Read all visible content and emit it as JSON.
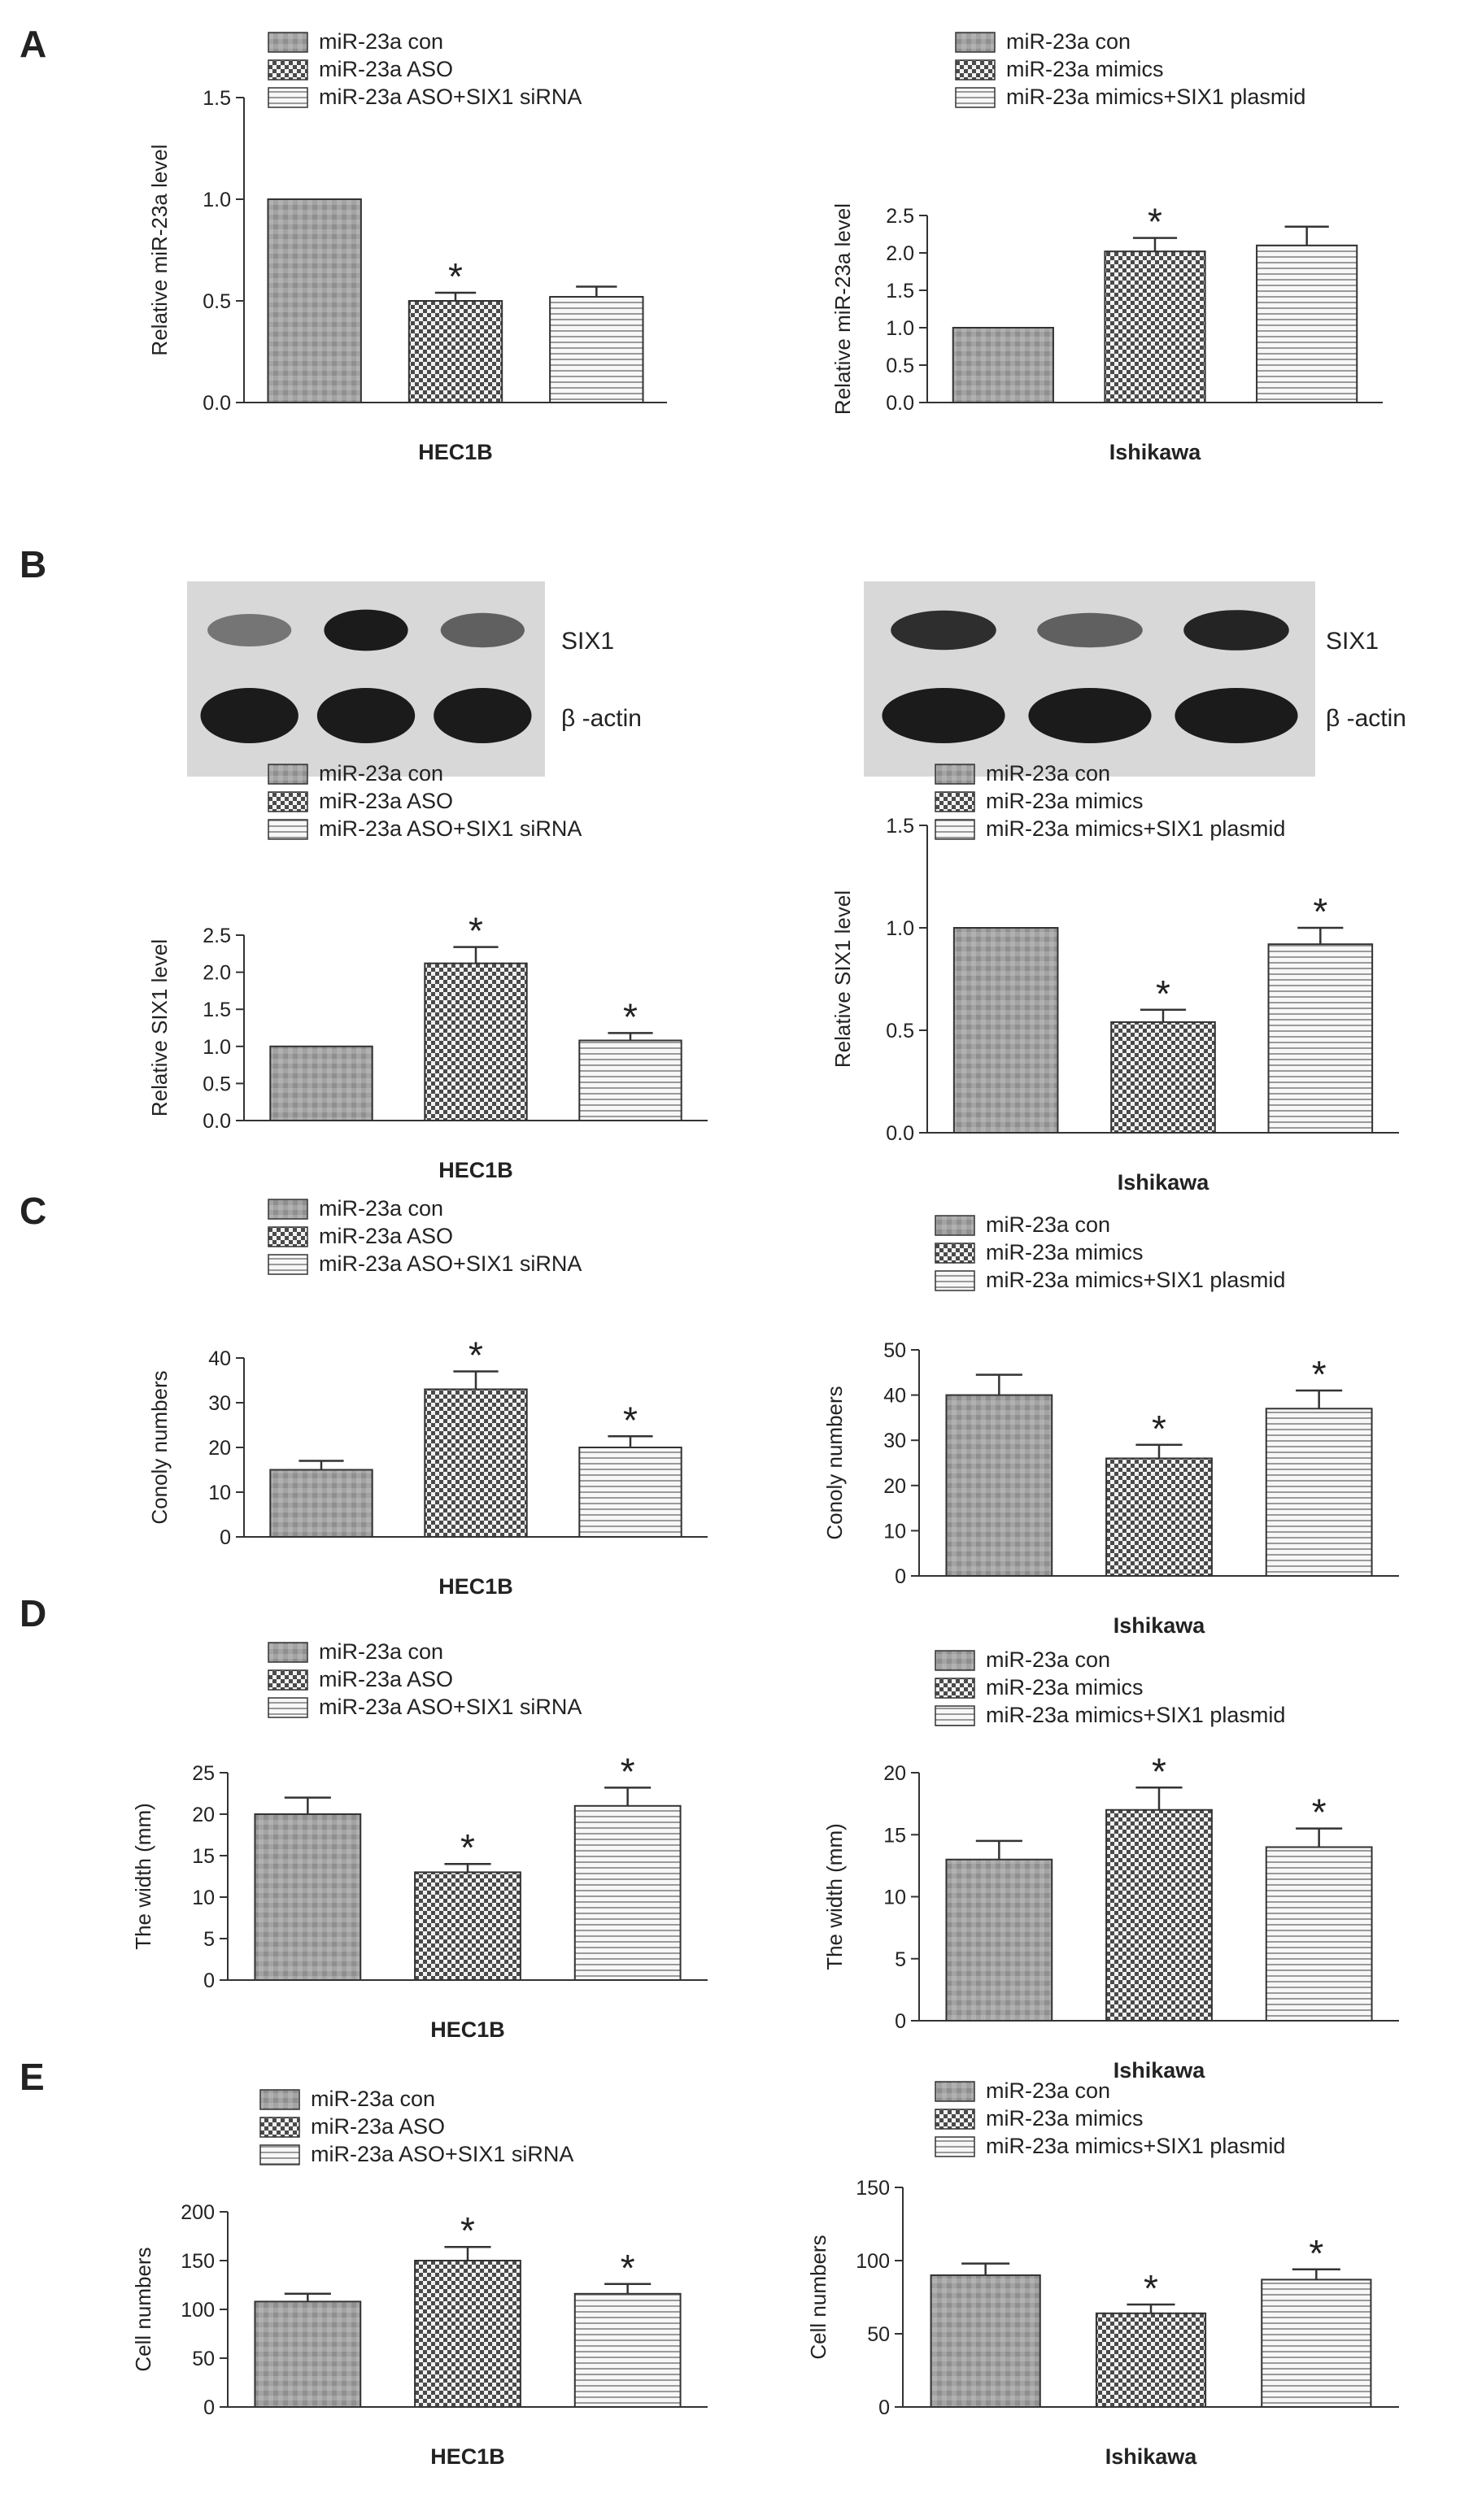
{
  "panels": [
    {
      "id": "A",
      "label": "A"
    },
    {
      "id": "B",
      "label": "B"
    },
    {
      "id": "C",
      "label": "C"
    },
    {
      "id": "D",
      "label": "D"
    },
    {
      "id": "E",
      "label": "E"
    }
  ],
  "blots": {
    "HEC1B": {
      "label_top": "SIX1",
      "label_bottom": "β -actin",
      "six1_intensity": [
        0.5,
        0.95,
        0.6
      ],
      "actin_intensity": [
        0.95,
        0.95,
        0.95
      ]
    },
    "Ishikawa": {
      "label_top": "SIX1",
      "label_bottom": "β -actin",
      "six1_intensity": [
        0.85,
        0.6,
        0.9
      ],
      "actin_intensity": [
        0.95,
        0.95,
        0.95
      ]
    }
  },
  "colors": {
    "bar_con": "#9a9a9a",
    "bar_dark": "#555555",
    "bar_fill_light": "#efefef",
    "axis": "#333333"
  },
  "chart_data": [
    {
      "id": "A-HEC1B",
      "panel": "A",
      "type": "bar",
      "xlabel": "HEC1B",
      "ylabel": "Relative miR-23a level",
      "legend": [
        "miR-23a con",
        "miR-23a ASO",
        "miR-23a ASO+SIX1 siRNA"
      ],
      "values": [
        1.0,
        0.5,
        0.52
      ],
      "errors": [
        0,
        0.04,
        0.05
      ],
      "significant": [
        false,
        true,
        false
      ],
      "ylim": [
        0,
        1.5
      ],
      "ticks": [
        "0.0",
        "0.5",
        "1.0",
        "1.5"
      ]
    },
    {
      "id": "A-Ishikawa",
      "panel": "A",
      "type": "bar",
      "xlabel": "Ishikawa",
      "ylabel": "Relative miR-23a level",
      "legend": [
        "miR-23a con",
        "miR-23a mimics",
        "miR-23a mimics+SIX1 plasmid"
      ],
      "values": [
        1.0,
        2.02,
        2.1
      ],
      "errors": [
        0,
        0.18,
        0.25
      ],
      "significant": [
        false,
        true,
        false
      ],
      "ylim": [
        0,
        2.5
      ],
      "ticks": [
        "0.0",
        "0.5",
        "1.0",
        "1.5",
        "2.0",
        "2.5"
      ]
    },
    {
      "id": "B-HEC1B",
      "panel": "B",
      "type": "bar",
      "xlabel": "HEC1B",
      "ylabel": "Relative SIX1 level",
      "legend": [
        "miR-23a con",
        "miR-23a ASO",
        "miR-23a ASO+SIX1 siRNA"
      ],
      "values": [
        1.0,
        2.12,
        1.08
      ],
      "errors": [
        0,
        0.22,
        0.1
      ],
      "significant": [
        false,
        true,
        true
      ],
      "ylim": [
        0,
        2.5
      ],
      "ticks": [
        "0.0",
        "0.5",
        "1.0",
        "1.5",
        "2.0",
        "2.5"
      ]
    },
    {
      "id": "B-Ishikawa",
      "panel": "B",
      "type": "bar",
      "xlabel": "Ishikawa",
      "ylabel": "Relative SIX1 level",
      "legend": [
        "miR-23a con",
        "miR-23a mimics",
        "miR-23a mimics+SIX1 plasmid"
      ],
      "values": [
        1.0,
        0.54,
        0.92
      ],
      "errors": [
        0,
        0.06,
        0.08
      ],
      "significant": [
        false,
        true,
        true
      ],
      "ylim": [
        0,
        1.5
      ],
      "ticks": [
        "0.0",
        "0.5",
        "1.0",
        "1.5"
      ]
    },
    {
      "id": "C-HEC1B",
      "panel": "C",
      "type": "bar",
      "xlabel": "HEC1B",
      "ylabel": "Conoly numbers",
      "legend": [
        "miR-23a con",
        "miR-23a ASO",
        "miR-23a ASO+SIX1 siRNA"
      ],
      "values": [
        15,
        33,
        20
      ],
      "errors": [
        2,
        4,
        2.5
      ],
      "significant": [
        false,
        true,
        true
      ],
      "ylim": [
        0,
        40
      ],
      "ticks": [
        "0",
        "10",
        "20",
        "30",
        "40"
      ]
    },
    {
      "id": "C-Ishikawa",
      "panel": "C",
      "type": "bar",
      "xlabel": "Ishikawa",
      "ylabel": "Conoly numbers",
      "legend": [
        "miR-23a con",
        "miR-23a mimics",
        "miR-23a mimics+SIX1 plasmid"
      ],
      "values": [
        40,
        26,
        37
      ],
      "errors": [
        4.5,
        3,
        4
      ],
      "significant": [
        false,
        true,
        true
      ],
      "ylim": [
        0,
        50
      ],
      "ticks": [
        "0",
        "10",
        "20",
        "30",
        "40",
        "50"
      ]
    },
    {
      "id": "D-HEC1B",
      "panel": "D",
      "type": "bar",
      "xlabel": "HEC1B",
      "ylabel": "The width (mm)",
      "legend": [
        "miR-23a con",
        "miR-23a ASO",
        "miR-23a ASO+SIX1 siRNA"
      ],
      "values": [
        20,
        13,
        21
      ],
      "errors": [
        2,
        1,
        2.2
      ],
      "significant": [
        false,
        true,
        true
      ],
      "ylim": [
        0,
        25
      ],
      "ticks": [
        "0",
        "5",
        "10",
        "15",
        "20",
        "25"
      ]
    },
    {
      "id": "D-Ishikawa",
      "panel": "D",
      "type": "bar",
      "xlabel": "Ishikawa",
      "ylabel": "The width (mm)",
      "legend": [
        "miR-23a con",
        "miR-23a mimics",
        "miR-23a mimics+SIX1 plasmid"
      ],
      "values": [
        13,
        17,
        14
      ],
      "errors": [
        1.5,
        1.8,
        1.5
      ],
      "significant": [
        false,
        true,
        true
      ],
      "ylim": [
        0,
        20
      ],
      "ticks": [
        "0",
        "5",
        "10",
        "15",
        "20"
      ]
    },
    {
      "id": "E-HEC1B",
      "panel": "E",
      "type": "bar",
      "xlabel": "HEC1B",
      "ylabel": "Cell numbers",
      "legend": [
        "miR-23a con",
        "miR-23a ASO",
        "miR-23a ASO+SIX1 siRNA"
      ],
      "values": [
        108,
        150,
        116
      ],
      "errors": [
        8,
        14,
        10
      ],
      "significant": [
        false,
        true,
        true
      ],
      "ylim": [
        0,
        200
      ],
      "ticks": [
        "0",
        "50",
        "100",
        "150",
        "200"
      ]
    },
    {
      "id": "E-Ishikawa",
      "panel": "E",
      "type": "bar",
      "xlabel": "Ishikawa",
      "ylabel": "Cell numbers",
      "legend": [
        "miR-23a con",
        "miR-23a mimics",
        "miR-23a mimics+SIX1 plasmid"
      ],
      "values": [
        90,
        64,
        87
      ],
      "errors": [
        8,
        6,
        7
      ],
      "significant": [
        false,
        true,
        true
      ],
      "ylim": [
        0,
        150
      ],
      "ticks": [
        "0",
        "50",
        "100",
        "150"
      ]
    }
  ]
}
